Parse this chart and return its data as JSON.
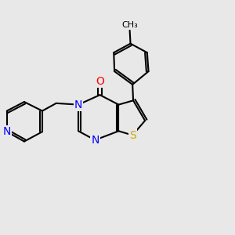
{
  "background_color": "#e8e8e8",
  "bond_color": "#000000",
  "N_color": "#0000ff",
  "O_color": "#ff0000",
  "S_color": "#ccaa00",
  "bond_width": 1.5,
  "dbo": 0.055,
  "xlim": [
    -2.5,
    3.5
  ],
  "ylim": [
    -2.8,
    3.0
  ]
}
